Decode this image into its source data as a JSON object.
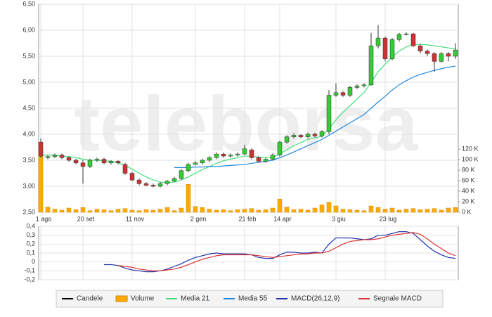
{
  "chart_data": [
    {
      "type": "candlestick",
      "watermark": "teleborsa",
      "categories": [
        "1 ago",
        null,
        null,
        null,
        null,
        null,
        "20 set",
        null,
        null,
        null,
        null,
        null,
        null,
        "11 nov",
        null,
        null,
        null,
        null,
        null,
        null,
        null,
        null,
        "2 gen",
        null,
        null,
        null,
        null,
        null,
        null,
        "21 feb",
        null,
        null,
        null,
        null,
        "14 apr",
        null,
        null,
        null,
        null,
        null,
        null,
        null,
        "3 giu",
        null,
        null,
        null,
        null,
        null,
        null,
        "23 lug",
        null,
        null,
        null,
        null,
        null,
        null,
        null,
        null,
        null,
        null
      ],
      "candles": {
        "name": "Candele",
        "color": "#000000",
        "up_color": "#33cc33",
        "down_color": "#cc3333",
        "open": [
          3.85,
          3.55,
          3.57,
          3.6,
          3.55,
          3.5,
          3.45,
          3.38,
          3.5,
          3.52,
          3.45,
          3.48,
          3.42,
          3.25,
          3.12,
          3.05,
          3.02,
          3.0,
          3.05,
          3.1,
          3.15,
          3.3,
          3.42,
          3.45,
          3.5,
          3.55,
          3.62,
          3.58,
          3.6,
          3.62,
          3.7,
          3.55,
          3.48,
          3.52,
          3.6,
          3.85,
          3.95,
          3.98,
          3.95,
          4.0,
          3.97,
          4.05,
          4.75,
          4.8,
          4.75,
          4.9,
          4.93,
          4.95,
          5.7,
          5.85,
          5.45,
          5.82,
          5.92,
          5.93,
          5.7,
          5.6,
          5.55,
          5.4,
          5.55,
          5.5
        ],
        "high": [
          3.92,
          3.6,
          3.63,
          3.63,
          3.58,
          3.53,
          3.5,
          3.53,
          3.55,
          3.55,
          3.5,
          3.5,
          3.45,
          3.28,
          3.15,
          3.08,
          3.05,
          3.08,
          3.12,
          3.18,
          3.33,
          3.45,
          3.48,
          3.53,
          3.58,
          3.65,
          3.65,
          3.63,
          3.65,
          3.8,
          3.73,
          3.58,
          3.55,
          3.63,
          3.88,
          3.98,
          4.02,
          4.0,
          4.03,
          4.03,
          4.08,
          4.85,
          4.98,
          4.83,
          4.93,
          4.96,
          4.98,
          5.95,
          6.1,
          5.88,
          5.85,
          5.95,
          5.96,
          5.95,
          5.73,
          5.63,
          5.58,
          5.58,
          5.58,
          5.75
        ],
        "low": [
          3.55,
          3.52,
          3.54,
          3.52,
          3.47,
          3.42,
          3.05,
          3.35,
          3.47,
          3.42,
          3.42,
          3.42,
          3.22,
          3.1,
          3.02,
          3.0,
          2.98,
          2.98,
          3.02,
          3.08,
          3.12,
          3.27,
          3.4,
          3.42,
          3.47,
          3.52,
          3.55,
          3.55,
          3.57,
          3.6,
          3.52,
          3.45,
          3.45,
          3.5,
          3.57,
          3.82,
          3.92,
          3.92,
          3.92,
          3.94,
          3.94,
          4.0,
          4.72,
          4.72,
          4.72,
          4.87,
          4.9,
          4.93,
          5.65,
          5.4,
          5.42,
          5.78,
          5.9,
          5.68,
          5.55,
          5.5,
          5.2,
          5.38,
          5.4,
          5.45
        ],
        "close": [
          3.58,
          3.57,
          3.6,
          3.55,
          3.5,
          3.45,
          3.38,
          3.5,
          3.52,
          3.45,
          3.48,
          3.45,
          3.25,
          3.12,
          3.05,
          3.02,
          3.0,
          3.05,
          3.1,
          3.15,
          3.3,
          3.42,
          3.45,
          3.5,
          3.55,
          3.62,
          3.58,
          3.6,
          3.62,
          3.72,
          3.55,
          3.48,
          3.52,
          3.6,
          3.85,
          3.95,
          3.98,
          3.95,
          4.0,
          3.97,
          4.05,
          4.75,
          4.8,
          4.75,
          4.9,
          4.93,
          4.95,
          5.7,
          5.85,
          5.45,
          5.82,
          5.92,
          5.93,
          5.7,
          5.6,
          5.55,
          5.4,
          5.55,
          5.5,
          5.62
        ]
      },
      "series": [
        {
          "name": "Volume",
          "color": "#ffaa00",
          "axis": "y2",
          "values": [
            122000,
            10000,
            6000,
            4000,
            8000,
            5000,
            9000,
            3000,
            6000,
            5000,
            3000,
            6000,
            7000,
            4000,
            3000,
            5000,
            4000,
            6000,
            9000,
            3000,
            8000,
            53000,
            11000,
            9000,
            6000,
            4000,
            5000,
            3000,
            5000,
            6000,
            7000,
            4000,
            5000,
            8000,
            25000,
            10000,
            5000,
            6000,
            4000,
            8000,
            14000,
            19000,
            12000,
            6000,
            5000,
            4000,
            3000,
            12000,
            9000,
            6000,
            8000,
            4000,
            6000,
            7000,
            5000,
            6000,
            7000,
            4000,
            8000,
            9000
          ]
        },
        {
          "name": "Media 21",
          "color": "#44dd77",
          "values": [
            3.6,
            3.6,
            3.6,
            3.58,
            3.57,
            3.55,
            3.52,
            3.5,
            3.5,
            3.49,
            3.48,
            3.45,
            3.4,
            3.33,
            3.25,
            3.18,
            3.12,
            3.08,
            3.07,
            3.08,
            3.12,
            3.18,
            3.25,
            3.32,
            3.38,
            3.44,
            3.49,
            3.52,
            3.55,
            3.58,
            3.58,
            3.56,
            3.55,
            3.56,
            3.62,
            3.7,
            3.78,
            3.84,
            3.9,
            3.93,
            3.96,
            4.1,
            4.28,
            4.42,
            4.55,
            4.68,
            4.8,
            5.0,
            5.2,
            5.35,
            5.48,
            5.6,
            5.68,
            5.72,
            5.73,
            5.72,
            5.7,
            5.68,
            5.66,
            5.64
          ]
        },
        {
          "name": "Media 55",
          "color": "#2288dd",
          "values": [
            null,
            null,
            null,
            null,
            null,
            null,
            null,
            null,
            null,
            null,
            null,
            null,
            null,
            null,
            null,
            null,
            null,
            null,
            null,
            3.36,
            3.36,
            3.36,
            3.37,
            3.37,
            3.38,
            3.38,
            3.39,
            3.4,
            3.41,
            3.42,
            3.44,
            3.46,
            3.48,
            3.5,
            3.55,
            3.6,
            3.66,
            3.72,
            3.78,
            3.84,
            3.9,
            3.98,
            4.06,
            4.14,
            4.22,
            4.3,
            4.38,
            4.5,
            4.62,
            4.73,
            4.85,
            4.95,
            5.03,
            5.1,
            5.15,
            5.19,
            5.23,
            5.26,
            5.29,
            5.31
          ]
        }
      ],
      "ylim": [
        2.5,
        6.5
      ],
      "yticks": [
        {
          "value": 2.5,
          "label": "2,50"
        },
        {
          "value": 3,
          "label": "3,00"
        },
        {
          "value": 3.5,
          "label": "3,50"
        },
        {
          "value": 4,
          "label": "4,00"
        },
        {
          "value": 4.5,
          "label": "4,50"
        },
        {
          "value": 5,
          "label": "5,00"
        },
        {
          "value": 5.5,
          "label": "5,50"
        },
        {
          "value": 6,
          "label": "6,00"
        },
        {
          "value": 6.5,
          "label": "6,50"
        }
      ],
      "y2lim": [
        0,
        395000
      ],
      "y2ticks": [
        {
          "value": 0,
          "label": "0 K"
        },
        {
          "value": 20000,
          "label": "20 K"
        },
        {
          "value": 40000,
          "label": "40 K"
        },
        {
          "value": 60000,
          "label": "60 K"
        },
        {
          "value": 80000,
          "label": "80 K"
        },
        {
          "value": 100000,
          "label": "100 K"
        },
        {
          "value": 120000,
          "label": "120 K"
        }
      ],
      "grid": true
    },
    {
      "type": "line",
      "series": [
        {
          "name": "MACD(26,12,9)",
          "color": "#2233aa",
          "values": [
            null,
            null,
            null,
            null,
            null,
            null,
            null,
            null,
            null,
            -0.03,
            -0.03,
            -0.04,
            -0.07,
            -0.09,
            -0.1,
            -0.11,
            -0.11,
            -0.1,
            -0.08,
            -0.05,
            -0.02,
            0.02,
            0.05,
            0.07,
            0.09,
            0.1,
            0.09,
            0.09,
            0.09,
            0.09,
            0.08,
            0.05,
            0.04,
            0.04,
            0.08,
            0.11,
            0.11,
            0.1,
            0.1,
            0.11,
            0.1,
            0.2,
            0.27,
            0.27,
            0.27,
            0.26,
            0.25,
            0.26,
            0.3,
            0.3,
            0.32,
            0.34,
            0.34,
            0.32,
            0.25,
            0.18,
            0.12,
            0.08,
            0.05,
            0.04
          ]
        },
        {
          "name": "Segnale MACD",
          "color": "#dd3333",
          "values": [
            null,
            null,
            null,
            null,
            null,
            null,
            null,
            null,
            null,
            null,
            null,
            -0.04,
            -0.05,
            -0.06,
            -0.08,
            -0.09,
            -0.1,
            -0.1,
            -0.09,
            -0.08,
            -0.06,
            -0.03,
            0.0,
            0.03,
            0.05,
            0.07,
            0.08,
            0.08,
            0.08,
            0.08,
            0.08,
            0.07,
            0.06,
            0.05,
            0.06,
            0.07,
            0.08,
            0.09,
            0.09,
            0.1,
            0.1,
            0.12,
            0.16,
            0.2,
            0.23,
            0.24,
            0.25,
            0.25,
            0.26,
            0.28,
            0.3,
            0.31,
            0.32,
            0.33,
            0.31,
            0.26,
            0.2,
            0.15,
            0.1,
            0.07
          ]
        }
      ],
      "ylim": [
        -0.2,
        0.4
      ],
      "yticks": [
        {
          "value": -0.2,
          "label": "-0,2"
        },
        {
          "value": -0.1,
          "label": "-0,1"
        },
        0,
        {
          "value": 0.1,
          "label": "0,1"
        },
        {
          "value": 0.2,
          "label": "0,2"
        },
        {
          "value": 0.3,
          "label": "0,3"
        },
        {
          "value": 0.4,
          "label": "0,4"
        }
      ],
      "grid": true
    }
  ]
}
